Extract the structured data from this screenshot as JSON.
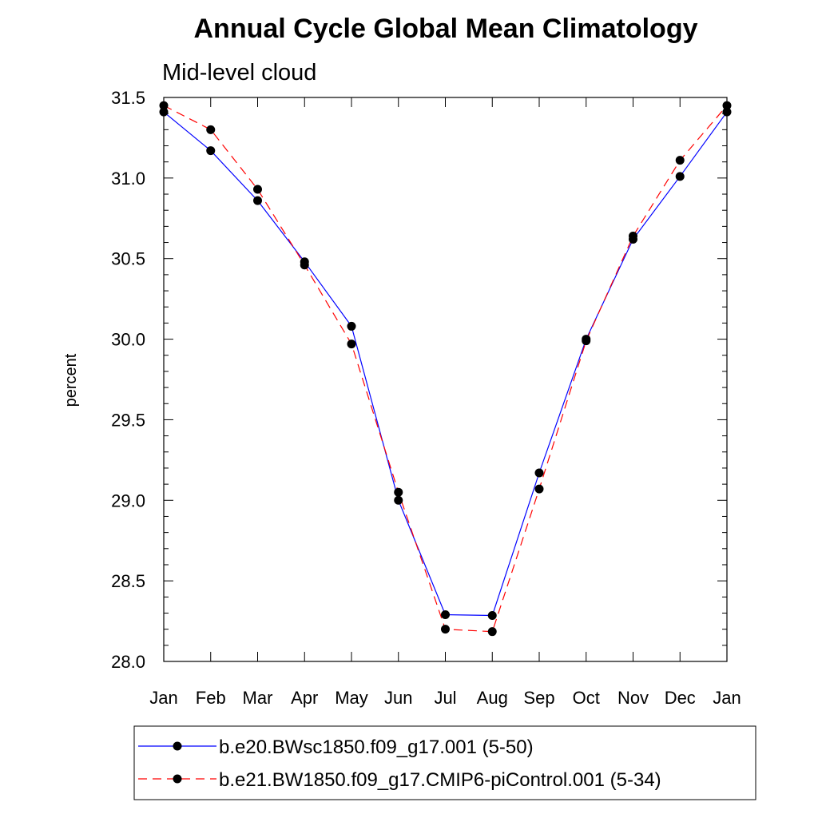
{
  "chart_data": {
    "type": "line",
    "title": "Annual Cycle Global Mean Climatology",
    "subtitle": "Mid-level cloud",
    "xlabel": "",
    "ylabel": "percent",
    "categories": [
      "Jan",
      "Feb",
      "Mar",
      "Apr",
      "May",
      "Jun",
      "Jul",
      "Aug",
      "Sep",
      "Oct",
      "Nov",
      "Dec",
      "Jan"
    ],
    "ylim": [
      28.0,
      31.5
    ],
    "yticks": [
      "28.0",
      "28.5",
      "29.0",
      "29.5",
      "30.0",
      "30.5",
      "31.0",
      "31.5"
    ],
    "legend_position": "bottom",
    "series": [
      {
        "name": "b.e20.BWsc1850.f09_g17.001 (5-50)",
        "color": "#0000ff",
        "dash": "solid",
        "values": [
          31.41,
          31.17,
          30.86,
          30.48,
          30.08,
          29.0,
          28.29,
          28.285,
          29.17,
          30.0,
          30.62,
          31.01,
          31.41
        ]
      },
      {
        "name": "b.e21.BW1850.f09_g17.CMIP6-piControl.001 (5-34)",
        "color": "#ff0000",
        "dash": "dashed",
        "values": [
          31.45,
          31.3,
          30.93,
          30.46,
          29.97,
          29.05,
          28.2,
          28.185,
          29.07,
          29.99,
          30.64,
          31.11,
          31.45
        ]
      }
    ]
  }
}
